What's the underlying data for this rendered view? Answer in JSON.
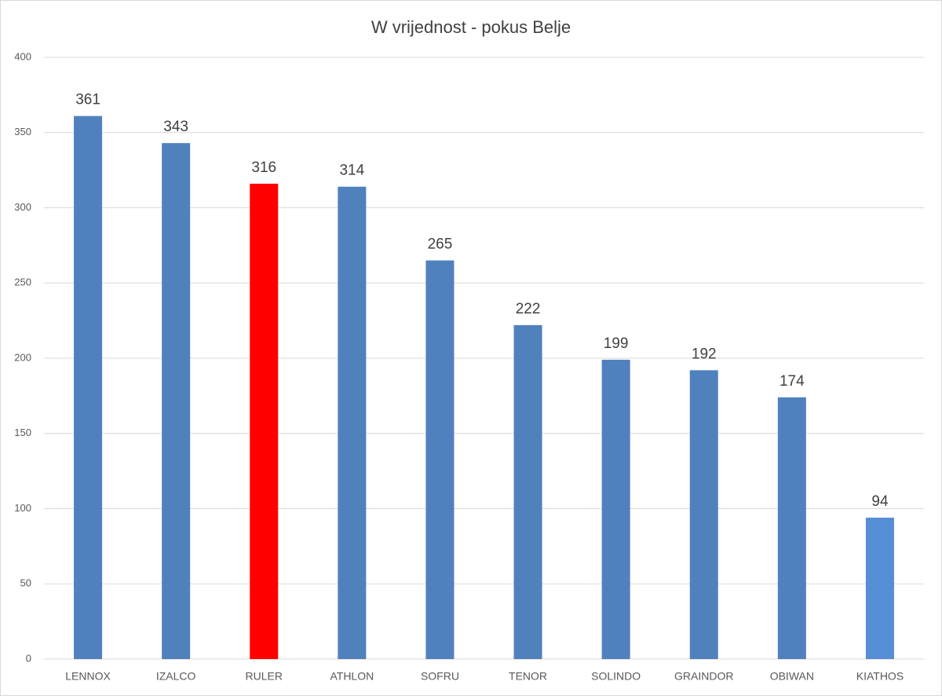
{
  "chart_data": {
    "type": "bar",
    "title": "W vrijednost - pokus Belje",
    "categories": [
      "LENNOX",
      "IZALCO",
      "RULER",
      "ATHLON",
      "SOFRU",
      "TENOR",
      "SOLINDO",
      "GRAINDOR",
      "OBIWAN",
      "KIATHOS"
    ],
    "values": [
      361,
      343,
      316,
      314,
      265,
      222,
      199,
      192,
      174,
      94
    ],
    "colors": [
      "#4f81bd",
      "#4f81bd",
      "#ff0000",
      "#4f81bd",
      "#4f81bd",
      "#4f81bd",
      "#4f81bd",
      "#4f81bd",
      "#4f81bd",
      "#558ed5"
    ],
    "ylim": [
      0,
      400
    ],
    "yticks": [
      0,
      50,
      100,
      150,
      200,
      250,
      300,
      350,
      400
    ],
    "grid": true
  }
}
